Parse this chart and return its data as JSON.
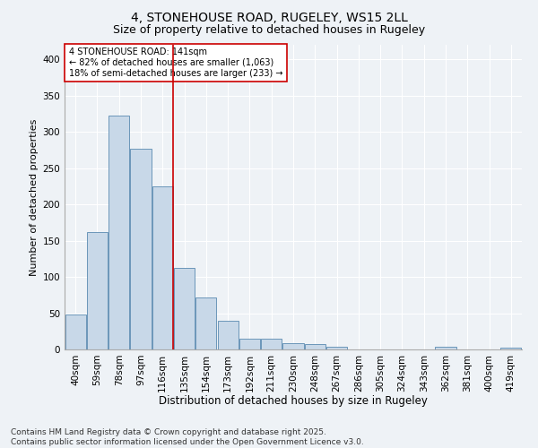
{
  "title": "4, STONEHOUSE ROAD, RUGELEY, WS15 2LL",
  "subtitle": "Size of property relative to detached houses in Rugeley",
  "xlabel": "Distribution of detached houses by size in Rugeley",
  "ylabel": "Number of detached properties",
  "categories": [
    "40sqm",
    "59sqm",
    "78sqm",
    "97sqm",
    "116sqm",
    "135sqm",
    "154sqm",
    "173sqm",
    "192sqm",
    "211sqm",
    "230sqm",
    "248sqm",
    "267sqm",
    "286sqm",
    "305sqm",
    "324sqm",
    "343sqm",
    "362sqm",
    "381sqm",
    "400sqm",
    "419sqm"
  ],
  "values": [
    48,
    162,
    322,
    277,
    225,
    112,
    72,
    40,
    15,
    15,
    9,
    7,
    4,
    0,
    0,
    0,
    0,
    4,
    0,
    0,
    2
  ],
  "bar_color": "#c8d8e8",
  "bar_edge_color": "#5a8ab0",
  "vline_index": 5,
  "vline_color": "#cc0000",
  "annotation_text": "4 STONEHOUSE ROAD: 141sqm\n← 82% of detached houses are smaller (1,063)\n18% of semi-detached houses are larger (233) →",
  "annotation_box_color": "#ffffff",
  "annotation_box_edgecolor": "#cc0000",
  "annotation_fontsize": 7,
  "background_color": "#eef2f6",
  "grid_color": "#ffffff",
  "footer": "Contains HM Land Registry data © Crown copyright and database right 2025.\nContains public sector information licensed under the Open Government Licence v3.0.",
  "ylim": [
    0,
    420
  ],
  "yticks": [
    0,
    50,
    100,
    150,
    200,
    250,
    300,
    350,
    400
  ],
  "title_fontsize": 10,
  "subtitle_fontsize": 9,
  "xlabel_fontsize": 8.5,
  "ylabel_fontsize": 8,
  "footer_fontsize": 6.5,
  "tick_fontsize": 7.5
}
